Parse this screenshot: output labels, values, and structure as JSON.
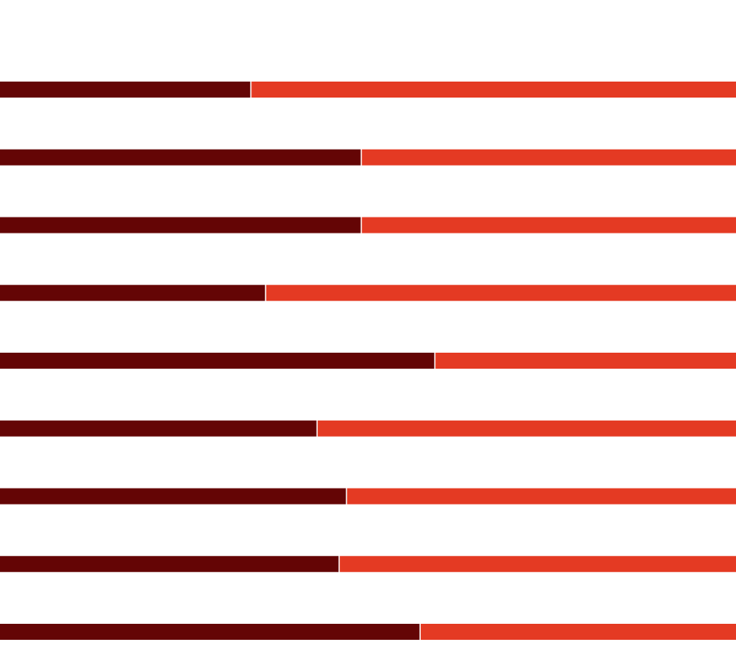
{
  "chart_data": {
    "type": "bar",
    "orientation": "horizontal",
    "stacked": true,
    "normalized": true,
    "title": "",
    "xlabel": "",
    "ylabel": "",
    "grid": false,
    "legend": "none",
    "categories": [
      "",
      "",
      "",
      "",
      "",
      "",
      "",
      "",
      ""
    ],
    "series": [
      {
        "color": "#640505",
        "values": [
          0.34,
          0.49,
          0.49,
          0.36,
          0.59,
          0.43,
          0.47,
          0.46,
          0.57
        ]
      },
      {
        "color": "#e43a23",
        "values": [
          0.66,
          0.51,
          0.51,
          0.64,
          0.41,
          0.57,
          0.53,
          0.54,
          0.43
        ]
      }
    ],
    "xlim": [
      0,
      1
    ]
  }
}
